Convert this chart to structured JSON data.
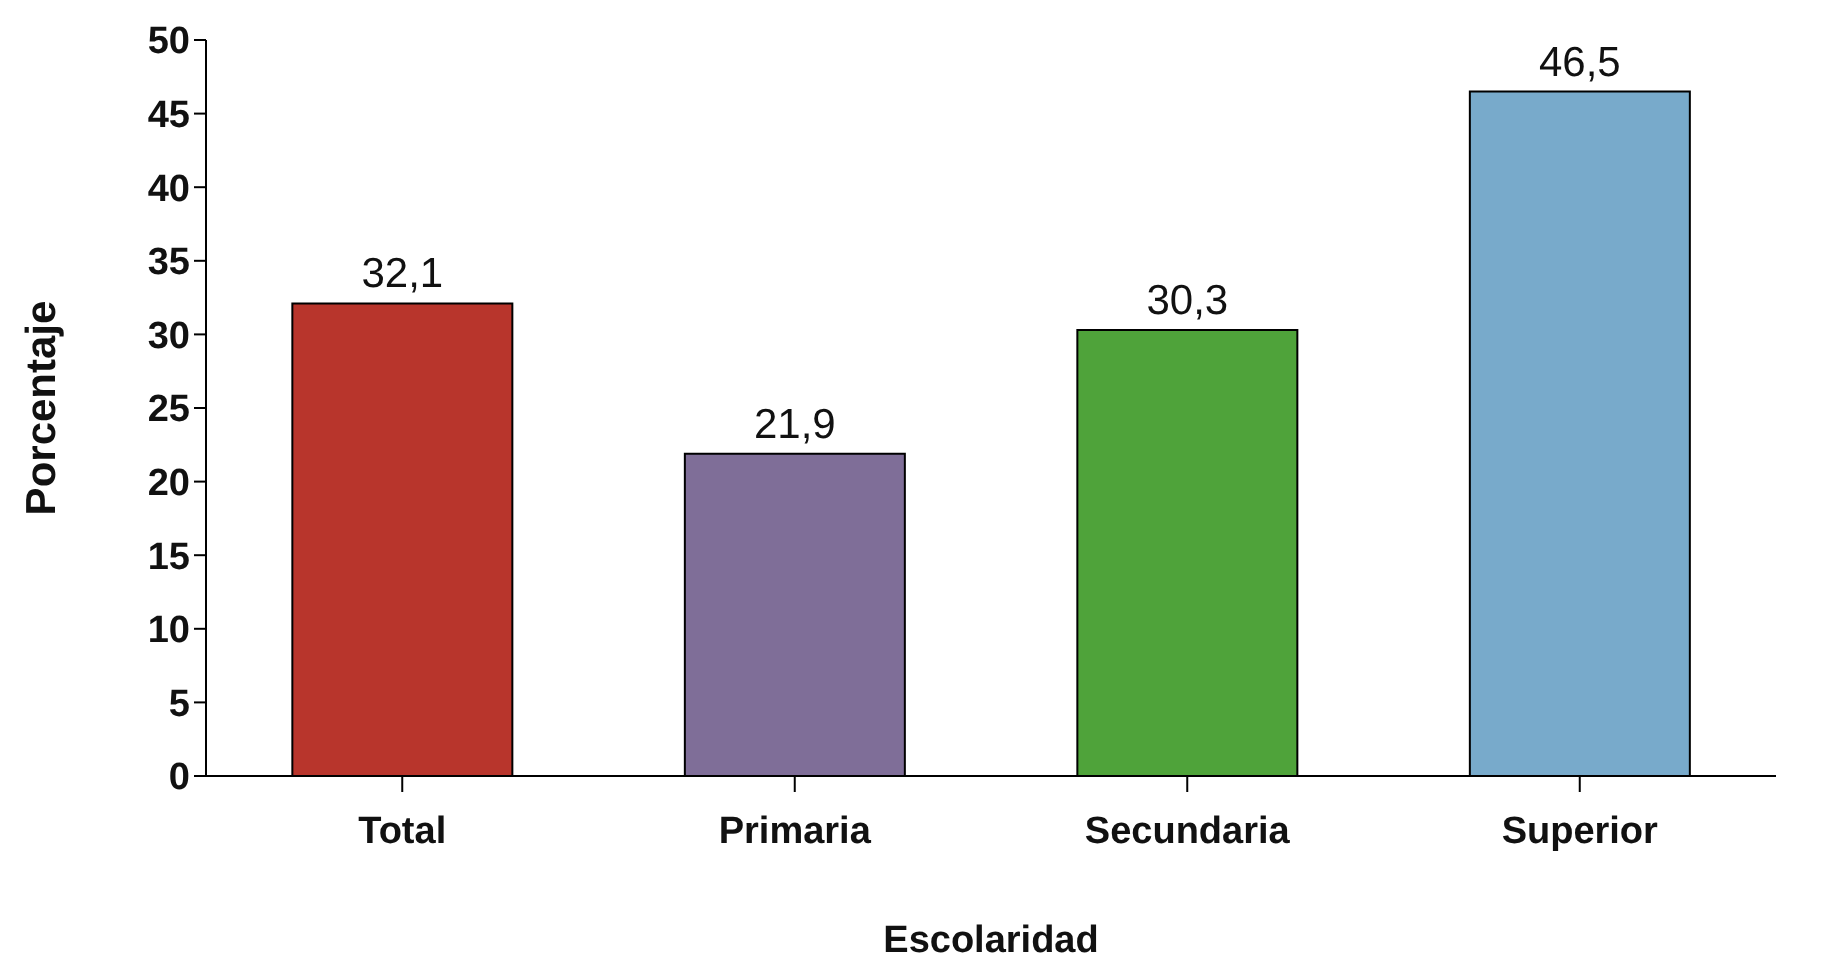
{
  "chart_data": {
    "type": "bar",
    "xlabel": "Escolaridad",
    "ylabel": "Porcentaje",
    "categories": [
      "Total",
      "Primaria",
      "Secundaria",
      "Superior"
    ],
    "values": [
      32.1,
      21.9,
      30.3,
      46.5
    ],
    "value_labels": [
      "32,1",
      "21,9",
      "30,3",
      "46,5"
    ],
    "colors": [
      "#b8352c",
      "#7f6e98",
      "#4fa33a",
      "#78aacb"
    ],
    "ylim": [
      0,
      50
    ],
    "yticks": [
      0,
      5,
      10,
      15,
      20,
      25,
      30,
      35,
      40,
      45,
      50
    ],
    "grid": false,
    "legend": false
  }
}
